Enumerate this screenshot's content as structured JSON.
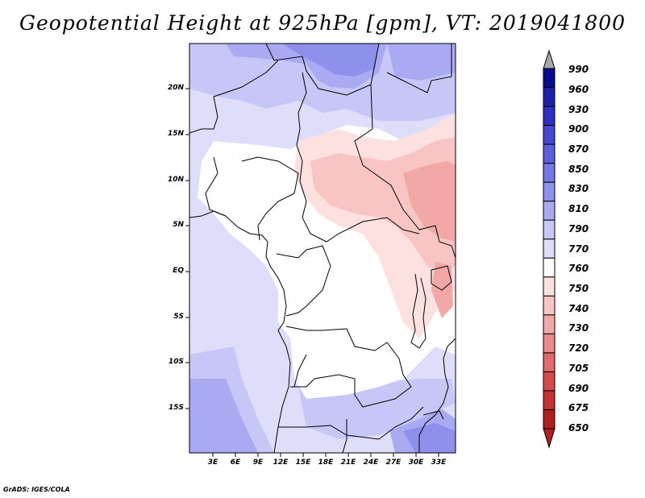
{
  "title": "Geopotential Height at 925hPa [gpm], VT: 2019041800",
  "map": {
    "lat_labels": [
      "20N",
      "15N",
      "10N",
      "5N",
      "EQ",
      "5S",
      "10S",
      "15S"
    ],
    "lon_labels": [
      "3E",
      "6E",
      "9E",
      "12E",
      "15E",
      "18E",
      "21E",
      "24E",
      "27E",
      "30E",
      "33E"
    ]
  },
  "colorbar": {
    "levels": [
      "990",
      "960",
      "930",
      "900",
      "870",
      "850",
      "830",
      "810",
      "790",
      "770",
      "760",
      "750",
      "740",
      "730",
      "720",
      "705",
      "690",
      "675",
      "650"
    ],
    "colors": [
      "#0a0a8c",
      "#1e1ea8",
      "#2f2fbf",
      "#4646cf",
      "#5e5edb",
      "#7676e4",
      "#8f8fec",
      "#aaaaf2",
      "#c6c6f7",
      "#dedefb",
      "#ffffff",
      "#fde0e0",
      "#f8c4c4",
      "#f3a8a8",
      "#ec8a8a",
      "#e16a6a",
      "#d44b4b",
      "#c43333",
      "#b11e1e"
    ],
    "overflow_color_top": "#a8a8a8",
    "overflow_color_bottom": "#b11e1e"
  },
  "credit": "GrADS: IGES/COLA"
}
